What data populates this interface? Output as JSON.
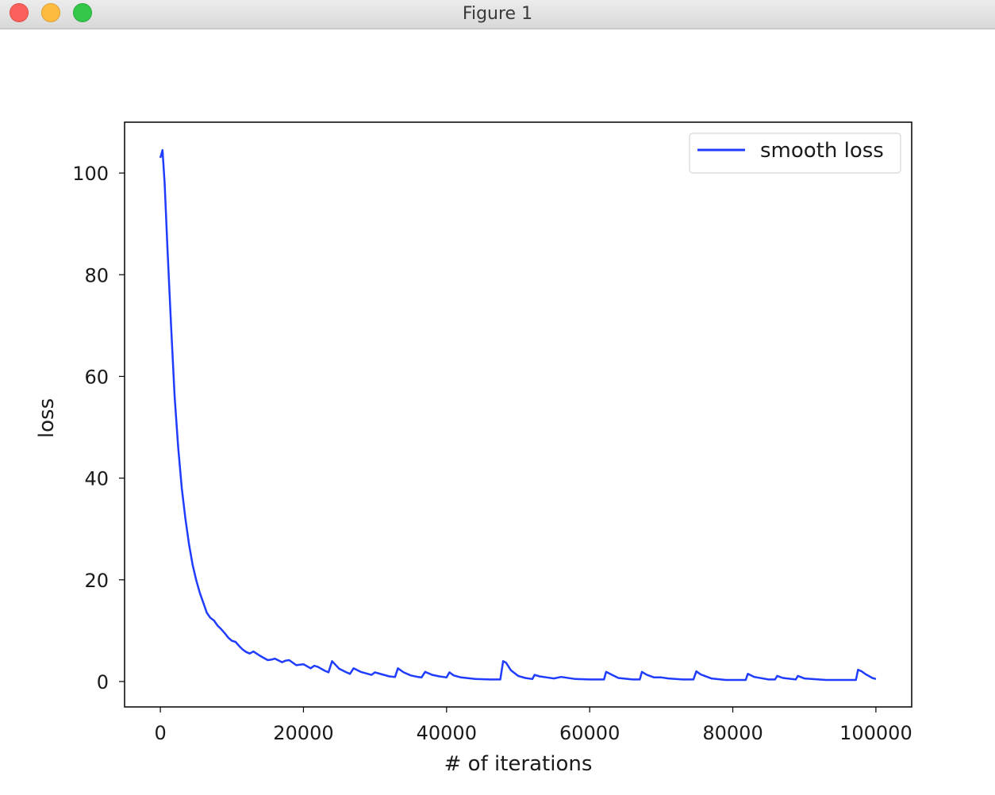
{
  "window": {
    "title": "Figure 1",
    "controls": [
      "close",
      "minimize",
      "zoom"
    ]
  },
  "chart_data": {
    "type": "line",
    "title": "",
    "xlabel": "# of iterations",
    "ylabel": "loss",
    "xlim": [
      -5000,
      105000
    ],
    "ylim": [
      -5,
      110
    ],
    "xticks": [
      0,
      20000,
      40000,
      60000,
      80000,
      100000
    ],
    "xtick_labels": [
      "0",
      "20000",
      "40000",
      "60000",
      "80000",
      "100000"
    ],
    "yticks": [
      0,
      20,
      40,
      60,
      80,
      100
    ],
    "ytick_labels": [
      "0",
      "20",
      "40",
      "60",
      "80",
      "100"
    ],
    "grid": false,
    "legend": {
      "placement": "top-right",
      "entries": [
        "smooth loss"
      ]
    },
    "series": [
      {
        "name": "smooth loss",
        "color": "#1f3cff",
        "x": [
          0,
          300,
          600,
          1000,
          1500,
          2000,
          2500,
          3000,
          3500,
          4000,
          4500,
          5000,
          5500,
          6000,
          6500,
          7000,
          7500,
          8000,
          8500,
          9000,
          9500,
          10000,
          10500,
          11000,
          11500,
          12000,
          12500,
          13000,
          14000,
          15000,
          15500,
          16000,
          17000,
          17500,
          18000,
          19000,
          19500,
          20000,
          21000,
          21500,
          22000,
          23000,
          23500,
          24000,
          25000,
          26000,
          26500,
          27000,
          28000,
          29000,
          29500,
          30000,
          31000,
          32000,
          32800,
          33200,
          34000,
          35000,
          36000,
          36500,
          37000,
          38000,
          39000,
          40000,
          40400,
          41000,
          42000,
          44000,
          46000,
          47500,
          47900,
          48300,
          49000,
          50000,
          51000,
          52000,
          52300,
          53000,
          54000,
          55000,
          56000,
          58000,
          60000,
          62000,
          62300,
          63000,
          64000,
          66000,
          67000,
          67300,
          68000,
          69000,
          70000,
          71000,
          73000,
          74500,
          74900,
          75500,
          77000,
          79000,
          81800,
          82100,
          83000,
          85000,
          85900,
          86200,
          87000,
          88800,
          89100,
          90000,
          93000,
          97200,
          97500,
          98000,
          98600,
          99000,
          99500,
          100000
        ],
        "y": [
          103,
          104.5,
          98,
          85,
          70,
          56,
          46,
          38,
          32,
          27,
          23,
          20,
          17.5,
          15.5,
          13.5,
          12.5,
          12,
          11,
          10.3,
          9.5,
          8.6,
          8,
          7.8,
          7,
          6.3,
          5.8,
          5.5,
          5.9,
          5,
          4.2,
          4.3,
          4.5,
          3.8,
          4.1,
          4.2,
          3.2,
          3.3,
          3.4,
          2.6,
          3.1,
          2.9,
          2.1,
          1.8,
          4,
          2.5,
          1.8,
          1.5,
          2.6,
          1.9,
          1.5,
          1.3,
          1.8,
          1.4,
          1,
          0.9,
          2.6,
          1.8,
          1.2,
          0.9,
          0.8,
          1.9,
          1.3,
          1,
          0.8,
          1.8,
          1.2,
          0.8,
          0.5,
          0.4,
          0.4,
          4,
          3.7,
          2.2,
          1.1,
          0.7,
          0.5,
          1.3,
          1,
          0.8,
          0.6,
          0.9,
          0.5,
          0.4,
          0.4,
          1.9,
          1.4,
          0.7,
          0.4,
          0.4,
          1.9,
          1.3,
          0.8,
          0.8,
          0.6,
          0.4,
          0.4,
          2,
          1.4,
          0.6,
          0.3,
          0.3,
          1.5,
          0.9,
          0.4,
          0.4,
          1.1,
          0.7,
          0.4,
          1.1,
          0.6,
          0.3,
          0.3,
          2.3,
          2,
          1.4,
          1.1,
          0.7,
          0.5
        ]
      }
    ]
  }
}
